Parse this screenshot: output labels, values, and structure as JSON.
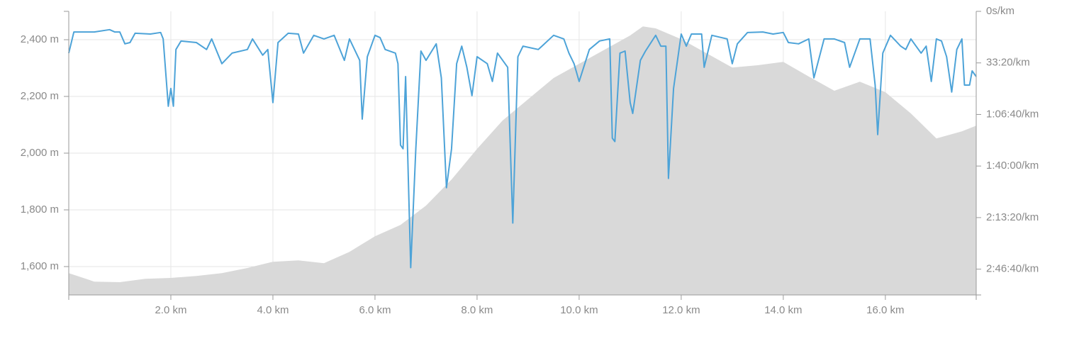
{
  "chart_data": {
    "type": "combo",
    "xlim": [
      0,
      17.78
    ],
    "xticks": [
      {
        "value": 2,
        "label": "2.0 km"
      },
      {
        "value": 4,
        "label": "4.0 km"
      },
      {
        "value": 6,
        "label": "6.0 km"
      },
      {
        "value": 8,
        "label": "8.0 km"
      },
      {
        "value": 10,
        "label": "10.0 km"
      },
      {
        "value": 12,
        "label": "12.0 km"
      },
      {
        "value": 14,
        "label": "14.0 km"
      },
      {
        "value": 16,
        "label": "16.0 km"
      }
    ],
    "ylim": [
      1500,
      2500
    ],
    "yticks": [
      {
        "value": 1600,
        "label": "1,600 m"
      },
      {
        "value": 1800,
        "label": "1,800 m"
      },
      {
        "value": 2000,
        "label": "2,000 m"
      },
      {
        "value": 2200,
        "label": "2,200 m"
      },
      {
        "value": 2400,
        "label": "2,400 m"
      }
    ],
    "y2lim": [
      0,
      11000
    ],
    "y2_inverted": true,
    "y2ticks": [
      {
        "value": 0,
        "label": "0s/km"
      },
      {
        "value": 2000,
        "label": "33:20/km"
      },
      {
        "value": 4000,
        "label": "1:06:40/km"
      },
      {
        "value": 6000,
        "label": "1:40:00/km"
      },
      {
        "value": 8000,
        "label": "2:13:20/km"
      },
      {
        "value": 10000,
        "label": "2:46:40/km"
      }
    ],
    "grid": true,
    "series": [
      {
        "type": "area",
        "color": "#d9d9d9",
        "x": [
          0,
          0.5,
          1,
          1.5,
          2,
          2.5,
          3,
          3.5,
          4,
          4.5,
          5,
          5.5,
          6,
          6.5,
          7,
          7.5,
          8,
          8.5,
          9,
          9.5,
          10,
          10.5,
          11,
          11.25,
          11.5,
          12,
          12.5,
          13,
          13.5,
          14,
          14.5,
          15,
          15.5,
          16,
          16.5,
          17,
          17.5,
          17.78
        ],
        "values": [
          1577,
          1547,
          1545,
          1557,
          1560,
          1567,
          1577,
          1595,
          1617,
          1622,
          1612,
          1652,
          1707,
          1747,
          1815,
          1907,
          2015,
          2115,
          2190,
          2265,
          2315,
          2365,
          2415,
          2447,
          2440,
          2402,
          2352,
          2302,
          2310,
          2322,
          2270,
          2220,
          2252,
          2215,
          2140,
          2052,
          2077,
          2097
        ]
      },
      {
        "type": "line",
        "axis": "y2",
        "color": "#4da3d8",
        "x": [
          0,
          0.1,
          0.5,
          0.8,
          0.9,
          1.0,
          1.1,
          1.2,
          1.3,
          1.6,
          1.8,
          1.85,
          1.95,
          2.0,
          2.05,
          2.1,
          2.2,
          2.5,
          2.7,
          2.8,
          3.0,
          3.2,
          3.5,
          3.6,
          3.8,
          3.9,
          4.0,
          4.1,
          4.3,
          4.5,
          4.6,
          4.8,
          5.0,
          5.2,
          5.4,
          5.5,
          5.7,
          5.75,
          5.85,
          6.0,
          6.1,
          6.2,
          6.4,
          6.45,
          6.5,
          6.55,
          6.6,
          6.7,
          6.8,
          6.9,
          7.0,
          7.2,
          7.3,
          7.4,
          7.5,
          7.6,
          7.7,
          7.8,
          7.9,
          8.0,
          8.2,
          8.3,
          8.4,
          8.6,
          8.7,
          8.8,
          8.9,
          9.2,
          9.5,
          9.7,
          9.8,
          9.9,
          10.0,
          10.2,
          10.4,
          10.6,
          10.65,
          10.7,
          10.8,
          10.9,
          11.0,
          11.05,
          11.2,
          11.3,
          11.5,
          11.6,
          11.7,
          11.75,
          11.85,
          12.0,
          12.1,
          12.2,
          12.4,
          12.45,
          12.6,
          12.9,
          13.0,
          13.1,
          13.3,
          13.6,
          13.8,
          14.0,
          14.1,
          14.3,
          14.5,
          14.6,
          14.8,
          15.0,
          15.2,
          15.3,
          15.5,
          15.7,
          15.8,
          15.85,
          15.95,
          16.1,
          16.3,
          16.4,
          16.5,
          16.7,
          16.8,
          16.9,
          17.0,
          17.1,
          17.2,
          17.3,
          17.4,
          17.5,
          17.55,
          17.65,
          17.7,
          17.78
        ],
        "values": [
          1620,
          800,
          800,
          710,
          800,
          800,
          1260,
          1210,
          850,
          880,
          820,
          1070,
          3680,
          2990,
          3680,
          1480,
          1150,
          1210,
          1480,
          1070,
          2030,
          1620,
          1480,
          1070,
          1700,
          1480,
          3540,
          1210,
          850,
          880,
          1620,
          930,
          1070,
          930,
          1900,
          1070,
          1900,
          4180,
          1760,
          930,
          1020,
          1480,
          1620,
          2030,
          5190,
          5330,
          2530,
          9940,
          5330,
          1540,
          1900,
          1260,
          2580,
          6840,
          5330,
          2030,
          1350,
          2170,
          3270,
          1760,
          2030,
          2720,
          1620,
          2170,
          8210,
          1760,
          1350,
          1480,
          930,
          1070,
          1620,
          2030,
          2720,
          1480,
          1150,
          1070,
          4920,
          5050,
          1620,
          1540,
          3540,
          3960,
          1900,
          1540,
          930,
          1350,
          1350,
          6480,
          2990,
          880,
          1350,
          880,
          880,
          2170,
          930,
          1070,
          2030,
          1260,
          820,
          800,
          880,
          820,
          1210,
          1260,
          1070,
          2580,
          1070,
          1070,
          1210,
          2170,
          1070,
          1070,
          2860,
          4780,
          1620,
          930,
          1350,
          1480,
          1070,
          1620,
          1350,
          2720,
          1070,
          1150,
          1760,
          3130,
          1480,
          1070,
          2860,
          2860,
          2310,
          2530
        ]
      }
    ]
  }
}
